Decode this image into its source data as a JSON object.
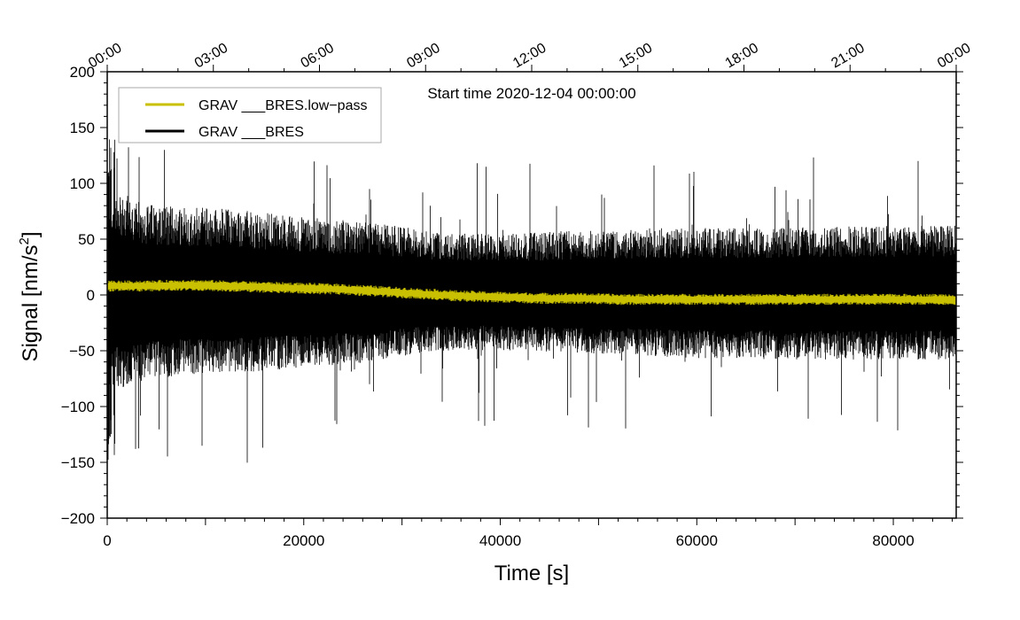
{
  "chart_data": {
    "type": "line",
    "title": "Start time 2020-12-04 00:00:00",
    "xlabel": "Time [s]",
    "ylabel_main": "Signal [nm/s",
    "ylabel_sup": "2",
    "ylabel_tail": "]",
    "xlim": [
      0,
      86400
    ],
    "ylim": [
      -200,
      200
    ],
    "x_ticks": [
      0,
      20000,
      40000,
      60000,
      80000
    ],
    "x_tick_labels": [
      "0",
      "20000",
      "40000",
      "60000",
      "80000"
    ],
    "y_ticks": [
      -200,
      -150,
      -100,
      -50,
      0,
      50,
      100,
      150,
      200
    ],
    "y_tick_labels": [
      "−200",
      "−150",
      "−100",
      "−50",
      "0",
      "50",
      "100",
      "150",
      "200"
    ],
    "top_axis_ticks": [
      0,
      10800,
      21600,
      32400,
      43200,
      54000,
      64800,
      75600,
      86400
    ],
    "top_axis_labels": [
      "00:00",
      "03:00",
      "06:00",
      "09:00",
      "12:00",
      "15:00",
      "18:00",
      "21:00",
      "00:00"
    ],
    "legend": [
      {
        "label": "GRAV ___BRES.low−pass",
        "color": "#c8c000"
      },
      {
        "label": "GRAV ___BRES",
        "color": "#000000"
      }
    ],
    "series": [
      {
        "name": "GRAV ___BRES",
        "color": "#000000",
        "x": [
          0,
          4000,
          8000,
          12000,
          16000,
          20000,
          24000,
          28000,
          32000,
          36000,
          40000,
          44000,
          48000,
          52000,
          56000,
          60000,
          64000,
          68000,
          72000,
          76000,
          80000,
          84000,
          86400
        ],
        "envelope_upper": [
          92,
          82,
          80,
          78,
          74,
          70,
          67,
          64,
          58,
          55,
          55,
          56,
          58,
          58,
          60,
          60,
          60,
          60,
          62,
          62,
          62,
          62,
          62
        ],
        "envelope_lower": [
          -88,
          -76,
          -72,
          -70,
          -68,
          -65,
          -62,
          -58,
          -52,
          -50,
          -50,
          -51,
          -53,
          -54,
          -55,
          -57,
          -57,
          -58,
          -58,
          -58,
          -58,
          -58,
          -58
        ],
        "spike_max": 145,
        "spike_min": -153
      },
      {
        "name": "GRAV ___BRES.low-pass",
        "color": "#c8c000",
        "x": [
          0,
          4000,
          8000,
          12000,
          16000,
          20000,
          24000,
          28000,
          32000,
          36000,
          40000,
          44000,
          48000,
          52000,
          56000,
          60000,
          64000,
          68000,
          72000,
          76000,
          80000,
          84000,
          86400
        ],
        "values": [
          8,
          8,
          9,
          8,
          7,
          6,
          5,
          3,
          1,
          -1,
          -2,
          -3,
          -3,
          -4,
          -4,
          -4,
          -4,
          -4,
          -4,
          -4,
          -4,
          -4,
          -4
        ]
      }
    ]
  }
}
